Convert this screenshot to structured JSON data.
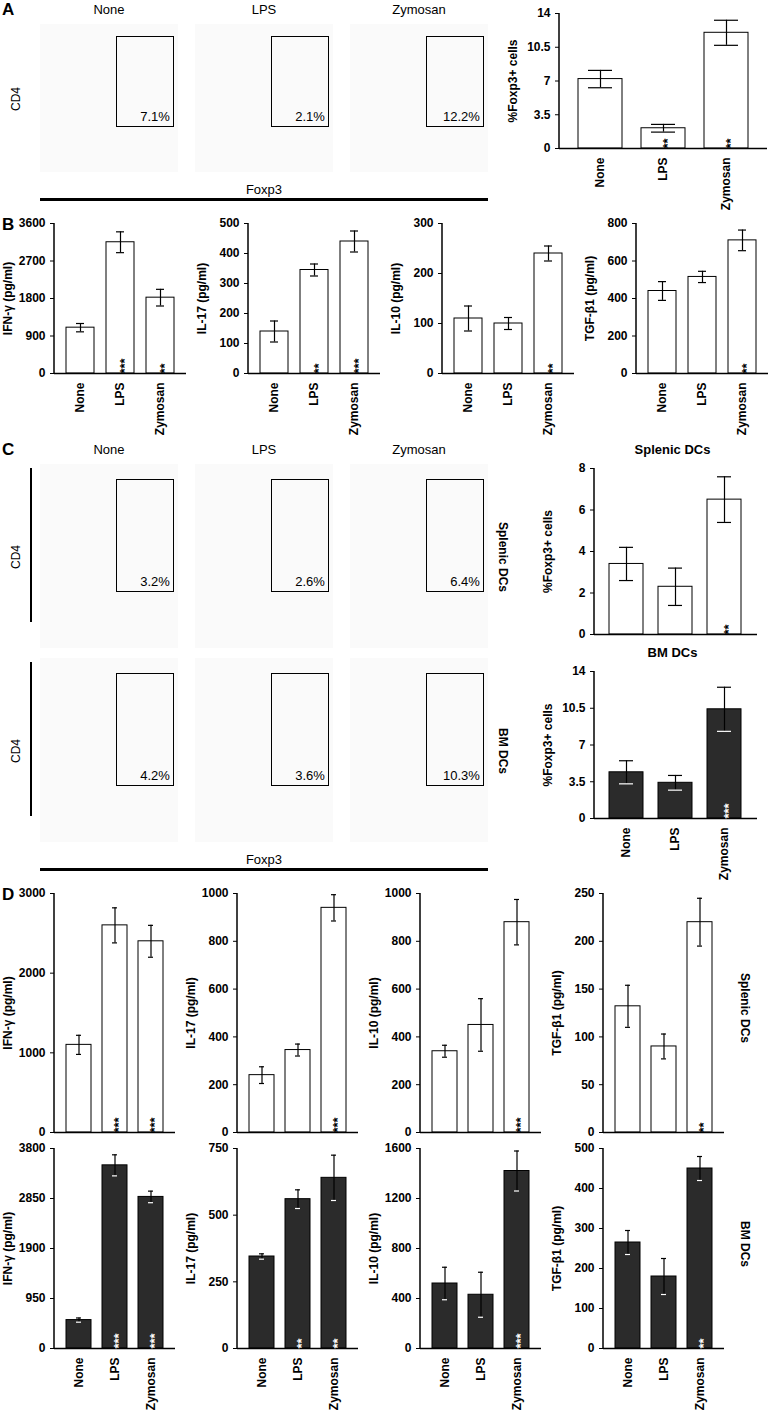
{
  "chart_data": [
    {
      "type": "flow",
      "panel": "A",
      "titles": [
        "None",
        "LPS",
        "Zymosan"
      ],
      "xlabel": "Foxp3",
      "rows": [
        {
          "ylabel": "CD4",
          "values": [
            7.1,
            2.1,
            12.2
          ],
          "value_labels": [
            "7.1%",
            "2.1%",
            "12.2%"
          ]
        }
      ]
    },
    {
      "type": "bar",
      "ylabel": "%Foxp3+ cells",
      "categories": [
        "None",
        "LPS",
        "Zymosan"
      ],
      "values": [
        7.2,
        2.1,
        12.0
      ],
      "errors": [
        0.9,
        0.4,
        1.3
      ],
      "significance": [
        null,
        "**",
        "**"
      ],
      "color": "#ffffff",
      "ylim": [
        0,
        14
      ],
      "yticks": [
        0,
        3.5,
        7,
        10.5,
        14
      ]
    },
    {
      "type": "bar",
      "panel": "B",
      "ylabel": "IFN-γ (pg/ml)",
      "categories": [
        "None",
        "LPS",
        "Zymosan"
      ],
      "values": [
        1100,
        3150,
        1820
      ],
      "errors": [
        100,
        250,
        200
      ],
      "significance": [
        null,
        "***",
        "**"
      ],
      "color": "#ffffff",
      "ylim": [
        0,
        3600
      ],
      "yticks": [
        0,
        900,
        1800,
        2700,
        3600
      ]
    },
    {
      "type": "bar",
      "ylabel": "IL-17 (pg/ml)",
      "categories": [
        "None",
        "LPS",
        "Zymosan"
      ],
      "values": [
        140,
        345,
        440
      ],
      "errors": [
        35,
        20,
        35
      ],
      "significance": [
        null,
        "**",
        "***"
      ],
      "color": "#ffffff",
      "ylim": [
        0,
        500
      ],
      "yticks": [
        0,
        100,
        200,
        300,
        400,
        500
      ]
    },
    {
      "type": "bar",
      "ylabel": "IL-10 (pg/ml)",
      "categories": [
        "None",
        "LPS",
        "Zymosan"
      ],
      "values": [
        110,
        100,
        240
      ],
      "errors": [
        25,
        12,
        15
      ],
      "significance": [
        null,
        null,
        "**"
      ],
      "color": "#ffffff",
      "ylim": [
        0,
        300
      ],
      "yticks": [
        0,
        100,
        200,
        300
      ]
    },
    {
      "type": "bar",
      "ylabel": "TGF-β1 (pg/ml)",
      "categories": [
        "None",
        "LPS",
        "Zymosan"
      ],
      "values": [
        440,
        515,
        710
      ],
      "errors": [
        50,
        30,
        55
      ],
      "significance": [
        null,
        null,
        "**"
      ],
      "color": "#ffffff",
      "ylim": [
        0,
        800
      ],
      "yticks": [
        0,
        200,
        400,
        600,
        800
      ]
    },
    {
      "type": "flow",
      "panel": "C",
      "titles": [
        "None",
        "LPS",
        "Zymosan"
      ],
      "xlabel": "Foxp3",
      "rows": [
        {
          "ylabel": "CD4",
          "label": "Splenic DCs",
          "values": [
            3.2,
            2.6,
            6.4
          ],
          "value_labels": [
            "3.2%",
            "2.6%",
            "6.4%"
          ]
        },
        {
          "ylabel": "CD4",
          "label": "BM DCs",
          "values": [
            4.2,
            3.6,
            10.3
          ],
          "value_labels": [
            "4.2%",
            "3.6%",
            "10.3%"
          ]
        }
      ]
    },
    {
      "type": "bar",
      "title": "Splenic DCs",
      "ylabel": "%Foxp3+ cells",
      "categories": [
        "None",
        "LPS",
        "Zymosan"
      ],
      "values": [
        3.4,
        2.3,
        6.5
      ],
      "errors": [
        0.8,
        0.9,
        1.1
      ],
      "significance": [
        null,
        null,
        "**"
      ],
      "color": "#ffffff",
      "ylim": [
        0,
        8
      ],
      "yticks": [
        0,
        2,
        4,
        6,
        8
      ],
      "tick_labels": "y"
    },
    {
      "type": "bar",
      "title": "BM DCs",
      "ylabel": "%Foxp3+ cells",
      "categories": [
        "None",
        "LPS",
        "Zymosan"
      ],
      "values": [
        4.4,
        3.4,
        10.4
      ],
      "errors": [
        1.1,
        0.7,
        2.1
      ],
      "significance": [
        null,
        null,
        "***"
      ],
      "color": "#2b2b2b",
      "ylim": [
        0,
        14
      ],
      "yticks": [
        0,
        3.5,
        7,
        10.5,
        14
      ]
    },
    {
      "type": "bar",
      "panel": "D",
      "ylabel": "IFN-γ (pg/ml)",
      "categories": [
        "None",
        "LPS",
        "Zymosan"
      ],
      "values": [
        1100,
        2600,
        2400
      ],
      "errors": [
        120,
        220,
        200
      ],
      "significance": [
        null,
        "***",
        "***"
      ],
      "color": "#ffffff",
      "ylim": [
        0,
        3000
      ],
      "yticks": [
        0,
        1000,
        2000,
        3000
      ],
      "tick_labels": "y"
    },
    {
      "type": "bar",
      "ylabel": "IL-17 (pg/ml)",
      "categories": [
        "None",
        "LPS",
        "Zymosan"
      ],
      "values": [
        240,
        345,
        940
      ],
      "errors": [
        35,
        25,
        55
      ],
      "significance": [
        null,
        null,
        "***"
      ],
      "color": "#ffffff",
      "ylim": [
        0,
        1000
      ],
      "yticks": [
        0,
        200,
        400,
        600,
        800,
        1000
      ],
      "tick_labels": "y"
    },
    {
      "type": "bar",
      "ylabel": "IL-10 (pg/ml)",
      "categories": [
        "None",
        "LPS",
        "Zymosan"
      ],
      "values": [
        340,
        450,
        880
      ],
      "errors": [
        25,
        110,
        95
      ],
      "significance": [
        null,
        null,
        "***"
      ],
      "color": "#ffffff",
      "ylim": [
        0,
        1000
      ],
      "yticks": [
        0,
        200,
        400,
        600,
        800,
        1000
      ],
      "tick_labels": "y"
    },
    {
      "type": "bar",
      "ylabel": "TGF-β1 (pg/ml)",
      "row_label": "Splenic DCs",
      "categories": [
        "None",
        "LPS",
        "Zymosan"
      ],
      "values": [
        132,
        90,
        220
      ],
      "errors": [
        22,
        13,
        25
      ],
      "significance": [
        null,
        null,
        "**"
      ],
      "color": "#ffffff",
      "ylim": [
        0,
        250
      ],
      "yticks": [
        0,
        50,
        100,
        150,
        200,
        250
      ],
      "tick_labels": "y"
    },
    {
      "type": "bar",
      "ylabel": "IFN-γ (pg/ml)",
      "categories": [
        "None",
        "LPS",
        "Zymosan"
      ],
      "values": [
        540,
        3480,
        2880
      ],
      "errors": [
        40,
        200,
        110
      ],
      "significance": [
        null,
        "***",
        "***"
      ],
      "color": "#2b2b2b",
      "ylim": [
        0,
        3800
      ],
      "yticks": [
        0,
        950,
        1900,
        2850,
        3800
      ]
    },
    {
      "type": "bar",
      "ylabel": "IL-17 (pg/ml)",
      "categories": [
        "None",
        "LPS",
        "Zymosan"
      ],
      "values": [
        345,
        560,
        640
      ],
      "errors": [
        10,
        35,
        85
      ],
      "significance": [
        null,
        "**",
        "**"
      ],
      "color": "#2b2b2b",
      "ylim": [
        0,
        750
      ],
      "yticks": [
        0,
        250,
        500,
        750
      ]
    },
    {
      "type": "bar",
      "ylabel": "IL-10 (pg/ml)",
      "categories": [
        "None",
        "LPS",
        "Zymosan"
      ],
      "values": [
        520,
        430,
        1420
      ],
      "errors": [
        130,
        180,
        160
      ],
      "significance": [
        null,
        null,
        "***"
      ],
      "color": "#2b2b2b",
      "ylim": [
        0,
        1600
      ],
      "yticks": [
        0,
        400,
        800,
        1200,
        1600
      ]
    },
    {
      "type": "bar",
      "ylabel": "TGF-β1 (pg/ml)",
      "row_label": "BM DCs",
      "categories": [
        "None",
        "LPS",
        "Zymosan"
      ],
      "values": [
        265,
        180,
        450
      ],
      "errors": [
        30,
        45,
        30
      ],
      "significance": [
        null,
        null,
        "**"
      ],
      "color": "#2b2b2b",
      "ylim": [
        0,
        500
      ],
      "yticks": [
        0,
        100,
        200,
        300,
        400,
        500
      ]
    }
  ]
}
